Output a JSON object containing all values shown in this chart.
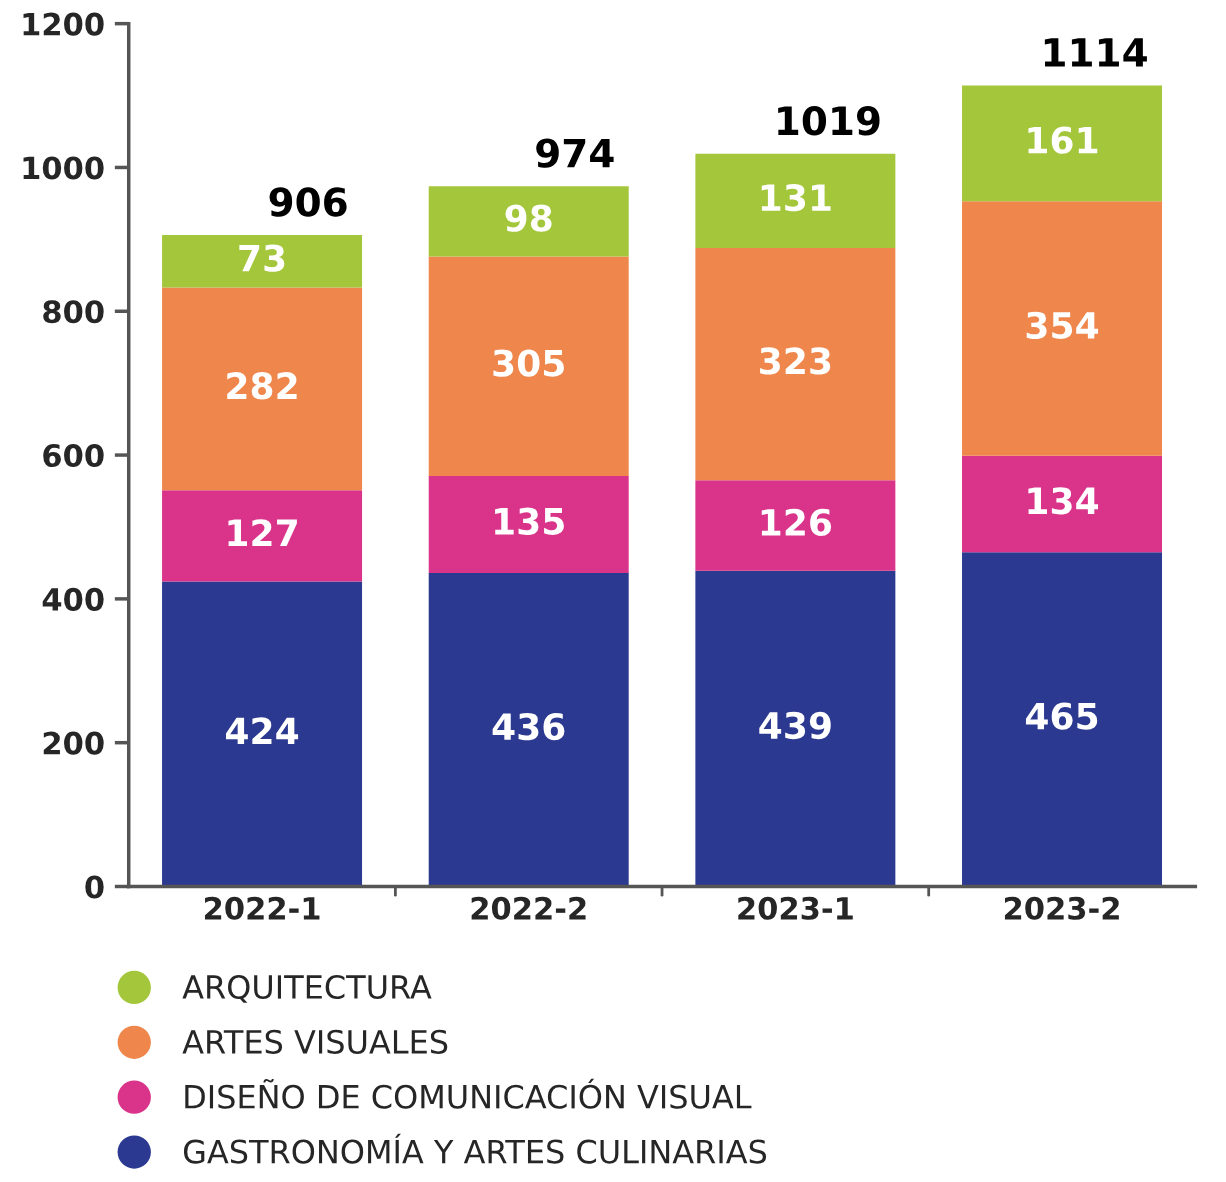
{
  "chart_data": {
    "type": "bar",
    "stacked": true,
    "categories": [
      "2022-1",
      "2022-2",
      "2023-1",
      "2023-2"
    ],
    "series": [
      {
        "name": "GASTRONOMÍA Y ARTES CULINARIAS",
        "color": "#2b3990",
        "values": [
          424,
          436,
          439,
          465
        ]
      },
      {
        "name": "DISEÑO DE COMUNICACIÓN VISUAL",
        "color": "#d9348a",
        "values": [
          127,
          135,
          126,
          134
        ]
      },
      {
        "name": "ARTES VISUALES",
        "color": "#ef874c",
        "values": [
          282,
          305,
          323,
          354
        ]
      },
      {
        "name": "ARQUITECTURA",
        "color": "#a4c63b",
        "values": [
          73,
          98,
          131,
          161
        ]
      }
    ],
    "totals": [
      "906",
      "974",
      "1019",
      "1114"
    ],
    "data_labels": true,
    "ylim": [
      0,
      1200
    ],
    "yticks": [
      0,
      200,
      400,
      600,
      800,
      1000,
      1200
    ],
    "grid": false,
    "legend": "bottom"
  }
}
